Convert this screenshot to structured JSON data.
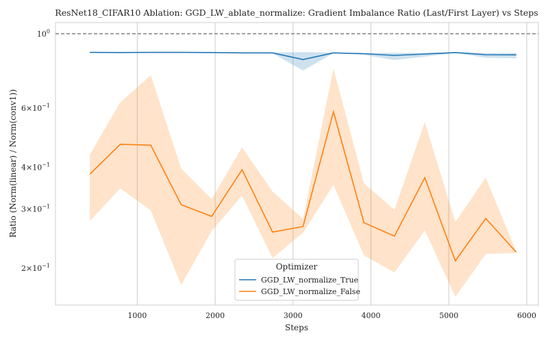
{
  "chart_data": {
    "type": "line",
    "title": "ResNet18_CIFAR10 Ablation: GGD_LW_ablate_normalize: Gradient Imbalance Ratio (Last/First Layer) vs Steps",
    "xlabel": "Steps",
    "ylabel": "Ratio (Norm(linear) / Norm(conv1))",
    "xlim": [
      -50,
      6150
    ],
    "ylim": [
      0.155,
      1.08
    ],
    "yscale": "log",
    "grid": true,
    "x_ticks": [
      1000,
      2000,
      3000,
      4000,
      5000,
      6000
    ],
    "x_tick_labels": [
      "1000",
      "2000",
      "3000",
      "4000",
      "5000",
      "6000"
    ],
    "y_ticks": [
      {
        "value": 1.0,
        "base": "10",
        "exp": "0"
      },
      {
        "value": 0.6,
        "base": "6×10",
        "exp": "−1"
      },
      {
        "value": 0.4,
        "base": "4×10",
        "exp": "−1"
      },
      {
        "value": 0.3,
        "base": "3×10",
        "exp": "−1"
      },
      {
        "value": 0.2,
        "base": "2×10",
        "exp": "−1"
      }
    ],
    "reference_line": {
      "y": 1.0,
      "style": "dashed",
      "color": "#808080"
    },
    "x": [
      391,
      782,
      1173,
      1564,
      1955,
      2346,
      2737,
      3128,
      3519,
      3910,
      4301,
      4692,
      5083,
      5474,
      5865
    ],
    "series": [
      {
        "name": "GGD_LW_normalize_True",
        "color": "#1f77b4",
        "values": [
          0.88,
          0.879,
          0.88,
          0.88,
          0.879,
          0.877,
          0.877,
          0.838,
          0.877,
          0.872,
          0.862,
          0.87,
          0.879,
          0.866,
          0.865
        ],
        "lower": [
          0.878,
          0.877,
          0.878,
          0.878,
          0.877,
          0.875,
          0.875,
          0.777,
          0.875,
          0.865,
          0.835,
          0.855,
          0.876,
          0.848,
          0.845
        ],
        "upper": [
          0.882,
          0.881,
          0.882,
          0.882,
          0.881,
          0.879,
          0.879,
          0.882,
          0.879,
          0.876,
          0.877,
          0.877,
          0.882,
          0.876,
          0.876
        ]
      },
      {
        "name": "GGD_LW_normalize_False",
        "color": "#ff7f0e",
        "values": [
          0.381,
          0.468,
          0.465,
          0.309,
          0.285,
          0.393,
          0.256,
          0.266,
          0.585,
          0.273,
          0.249,
          0.372,
          0.21,
          0.281,
          0.223
        ],
        "lower": [
          0.276,
          0.346,
          0.297,
          0.178,
          0.258,
          0.329,
          0.214,
          0.255,
          0.354,
          0.218,
          0.194,
          0.259,
          0.164,
          0.22,
          0.222
        ],
        "upper": [
          0.436,
          0.624,
          0.752,
          0.396,
          0.321,
          0.458,
          0.338,
          0.28,
          0.787,
          0.358,
          0.298,
          0.545,
          0.274,
          0.372,
          0.224
        ]
      }
    ],
    "legend": {
      "title": "Optimizer",
      "position": "lower center"
    }
  }
}
